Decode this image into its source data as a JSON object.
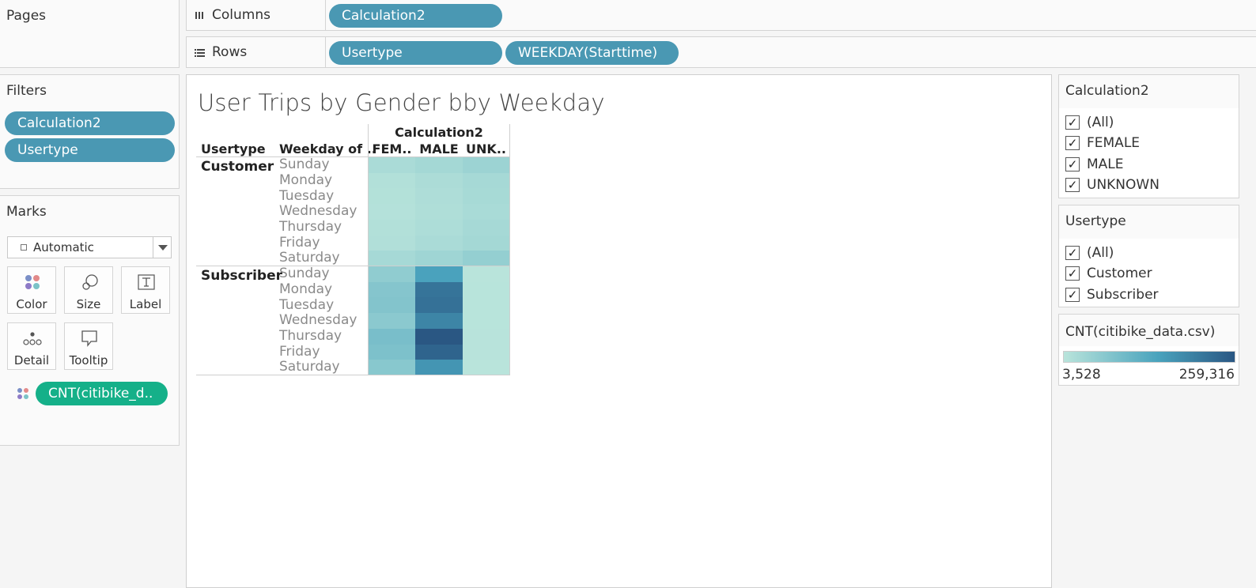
{
  "shelves": {
    "pages_title": "Pages",
    "columns_label": "Columns",
    "rows_label": "Rows",
    "columns_pills": [
      "Calculation2"
    ],
    "rows_pills": [
      "Usertype",
      "WEEKDAY(Starttime)"
    ]
  },
  "filters": {
    "title": "Filters",
    "pills": [
      "Calculation2",
      "Usertype"
    ]
  },
  "marks": {
    "title": "Marks",
    "mark_type": "Automatic",
    "buttons": [
      "Color",
      "Size",
      "Label",
      "Detail",
      "Tooltip"
    ],
    "field_pill": "CNT(citibike_d.."
  },
  "viz": {
    "title": "User Trips by Gender bby Weekday",
    "column_header_title": "Calculation2",
    "row_header_usertype": "Usertype",
    "row_header_weekday": "Weekday of ..",
    "column_headers": [
      "FEM..",
      "MALE",
      "UNK.."
    ],
    "usertypes": [
      "Customer",
      "Subscriber"
    ],
    "weekdays": [
      "Sunday",
      "Monday",
      "Tuesday",
      "Wednesday",
      "Thursday",
      "Friday",
      "Saturday"
    ]
  },
  "chart_data": {
    "type": "heatmap",
    "title": "User Trips by Gender bby Weekday",
    "column_field": "Calculation2",
    "columns": [
      "FEMALE",
      "MALE",
      "UNKNOWN"
    ],
    "row_fields": [
      "Usertype",
      "Weekday of Starttime"
    ],
    "rows": [
      {
        "usertype": "Customer",
        "weekday": "Sunday",
        "values": [
          22000,
          30000,
          40000
        ]
      },
      {
        "usertype": "Customer",
        "weekday": "Monday",
        "values": [
          12000,
          20000,
          28000
        ]
      },
      {
        "usertype": "Customer",
        "weekday": "Tuesday",
        "values": [
          11000,
          18000,
          26000
        ]
      },
      {
        "usertype": "Customer",
        "weekday": "Wednesday",
        "values": [
          10000,
          16000,
          24000
        ]
      },
      {
        "usertype": "Customer",
        "weekday": "Thursday",
        "values": [
          12000,
          19000,
          27000
        ]
      },
      {
        "usertype": "Customer",
        "weekday": "Friday",
        "values": [
          14000,
          22000,
          30000
        ]
      },
      {
        "usertype": "Customer",
        "weekday": "Saturday",
        "values": [
          28000,
          36000,
          50000
        ]
      },
      {
        "usertype": "Subscriber",
        "weekday": "Sunday",
        "values": [
          55000,
          145000,
          3528
        ]
      },
      {
        "usertype": "Subscriber",
        "weekday": "Monday",
        "values": [
          70000,
          215000,
          4200
        ]
      },
      {
        "usertype": "Subscriber",
        "weekday": "Tuesday",
        "values": [
          72000,
          220000,
          4500
        ]
      },
      {
        "usertype": "Subscriber",
        "weekday": "Wednesday",
        "values": [
          62000,
          190000,
          4300
        ]
      },
      {
        "usertype": "Subscriber",
        "weekday": "Thursday",
        "values": [
          85000,
          259316,
          5200
        ]
      },
      {
        "usertype": "Subscriber",
        "weekday": "Friday",
        "values": [
          80000,
          240000,
          5000
        ]
      },
      {
        "usertype": "Subscriber",
        "weekday": "Saturday",
        "values": [
          65000,
          165000,
          3900
        ]
      }
    ],
    "color_range": [
      3528,
      259316
    ]
  },
  "legend": {
    "calc_title": "Calculation2",
    "calc_items": [
      "(All)",
      "FEMALE",
      "MALE",
      "UNKNOWN"
    ],
    "usertype_title": "Usertype",
    "usertype_items": [
      "(All)",
      "Customer",
      "Subscriber"
    ],
    "cnt_title": "CNT(citibike_data.csv)",
    "cnt_min": "3,528",
    "cnt_max": "259,316",
    "check_glyph": "✓",
    "color_low": "#b9e4db",
    "color_high": "#2a5783"
  }
}
